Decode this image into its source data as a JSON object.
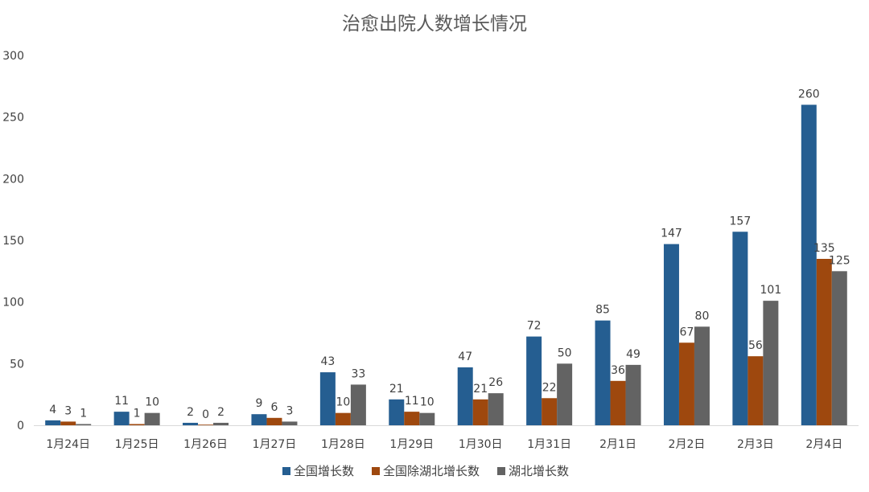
{
  "chart_data": {
    "type": "bar",
    "title": "治愈出院人数增长情况",
    "xlabel": "",
    "ylabel": "",
    "ylim": [
      0,
      300
    ],
    "yticks": [
      0,
      50,
      100,
      150,
      200,
      250,
      300
    ],
    "grid": false,
    "legend_position": "bottom-center",
    "categories": [
      "1月24日",
      "1月25日",
      "1月26日",
      "1月27日",
      "1月28日",
      "1月29日",
      "1月30日",
      "1月31日",
      "2月1日",
      "2月2日",
      "2月3日",
      "2月4日"
    ],
    "series": [
      {
        "name": "全国增长数",
        "color": "#255e91",
        "values": [
          4,
          11,
          2,
          9,
          43,
          21,
          47,
          72,
          85,
          147,
          157,
          260
        ]
      },
      {
        "name": "全国除湖北增长数",
        "color": "#9e480e",
        "values": [
          3,
          1,
          0,
          6,
          10,
          11,
          21,
          22,
          36,
          67,
          56,
          135
        ]
      },
      {
        "name": "湖北增长数",
        "color": "#636363",
        "values": [
          1,
          10,
          2,
          3,
          33,
          10,
          26,
          50,
          49,
          80,
          101,
          125
        ]
      }
    ]
  }
}
